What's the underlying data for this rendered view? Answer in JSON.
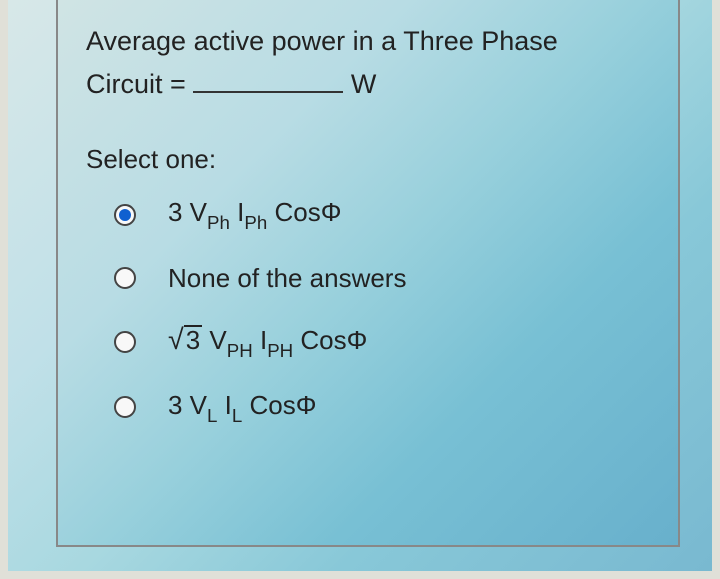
{
  "question": {
    "line1": "Average active power in a Three Phase",
    "circuit_prefix": "Circuit =",
    "unit": "W"
  },
  "select_label": "Select one:",
  "options": [
    {
      "selected": true,
      "parts": {
        "coef": "3 V",
        "sub1": "Ph",
        "mid": " I",
        "sub2": "Ph",
        "tail": " CosΦ"
      }
    },
    {
      "selected": false,
      "plain": "None of the answers"
    },
    {
      "selected": false,
      "sqrt": true,
      "parts": {
        "sqrt_arg": "3",
        "v": " V",
        "sub1": "PH",
        "i": " I",
        "sub2": "PH",
        "tail": " CosΦ"
      }
    },
    {
      "selected": false,
      "parts": {
        "coef": "3 V",
        "sub1": "L",
        "mid": " I",
        "sub2": "L",
        "tail": " CosΦ"
      }
    }
  ],
  "colors": {
    "text": "#222222",
    "radio_border": "#444444",
    "radio_fill": "#1060d0",
    "card_border": "#888888"
  }
}
